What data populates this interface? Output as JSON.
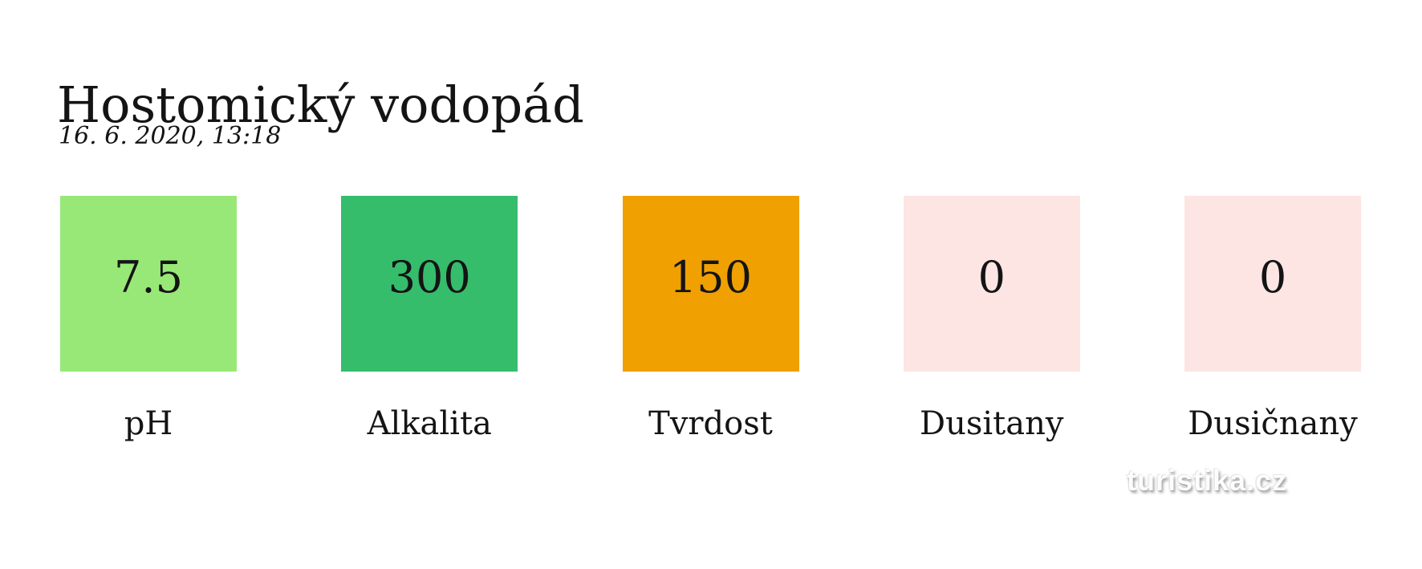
{
  "page": {
    "title": "Hostomický vodopád",
    "timestamp": "16. 6. 2020, 13:18"
  },
  "metrics": [
    {
      "id": "ph",
      "label": "pH",
      "value": "7.5",
      "color": "#98e878"
    },
    {
      "id": "alkalita",
      "label": "Alkalita",
      "value": "300",
      "color": "#35bd6c"
    },
    {
      "id": "tvrdost",
      "label": "Tvrdost",
      "value": "150",
      "color": "#f0a000"
    },
    {
      "id": "dusitany",
      "label": "Dusitany",
      "value": "0",
      "color": "#fce5e3"
    },
    {
      "id": "dusicnany",
      "label": "Dusičnany",
      "value": "0",
      "color": "#fce5e3"
    }
  ],
  "watermark": {
    "text": "turistika.cz"
  },
  "chart_data": {
    "type": "table",
    "title": "Hostomický vodopád",
    "subtitle": "16. 6. 2020, 13:18",
    "categories": [
      "pH",
      "Alkalita",
      "Tvrdost",
      "Dusitany",
      "Dusičnany"
    ],
    "values": [
      7.5,
      300,
      150,
      0,
      0
    ],
    "colors": [
      "#98e878",
      "#35bd6c",
      "#f0a000",
      "#fce5e3",
      "#fce5e3"
    ],
    "legend": "none",
    "layout": "five metric tiles in a row: value centered inside colored square, category label centered below"
  }
}
